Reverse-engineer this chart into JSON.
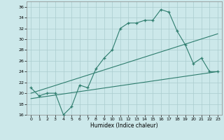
{
  "title": "",
  "xlabel": "Humidex (Indice chaleur)",
  "xlim": [
    -0.5,
    23.5
  ],
  "ylim": [
    16,
    37
  ],
  "yticks": [
    16,
    18,
    20,
    22,
    24,
    26,
    28,
    30,
    32,
    34,
    36
  ],
  "xticks": [
    0,
    1,
    2,
    3,
    4,
    5,
    6,
    7,
    8,
    9,
    10,
    11,
    12,
    13,
    14,
    15,
    16,
    17,
    18,
    19,
    20,
    21,
    22,
    23
  ],
  "bg_color": "#cce8ea",
  "grid_color": "#aaccce",
  "line_color": "#2e7d6e",
  "line1_x": [
    0,
    1,
    2,
    3,
    4,
    5,
    6,
    7,
    8,
    9,
    10,
    11,
    12,
    13,
    14,
    15,
    16,
    17,
    18,
    19,
    20,
    21,
    22,
    23
  ],
  "line1_y": [
    21,
    19.5,
    20,
    20,
    16,
    17.5,
    21.5,
    21,
    24.5,
    26.5,
    28,
    32,
    33,
    33,
    33.5,
    33.5,
    35.5,
    35,
    31.5,
    29,
    25.5,
    26.5,
    24,
    24
  ],
  "line3_x": [
    0,
    23
  ],
  "line3_y": [
    19,
    24
  ],
  "line4_x": [
    0,
    23
  ],
  "line4_y": [
    20,
    31
  ]
}
